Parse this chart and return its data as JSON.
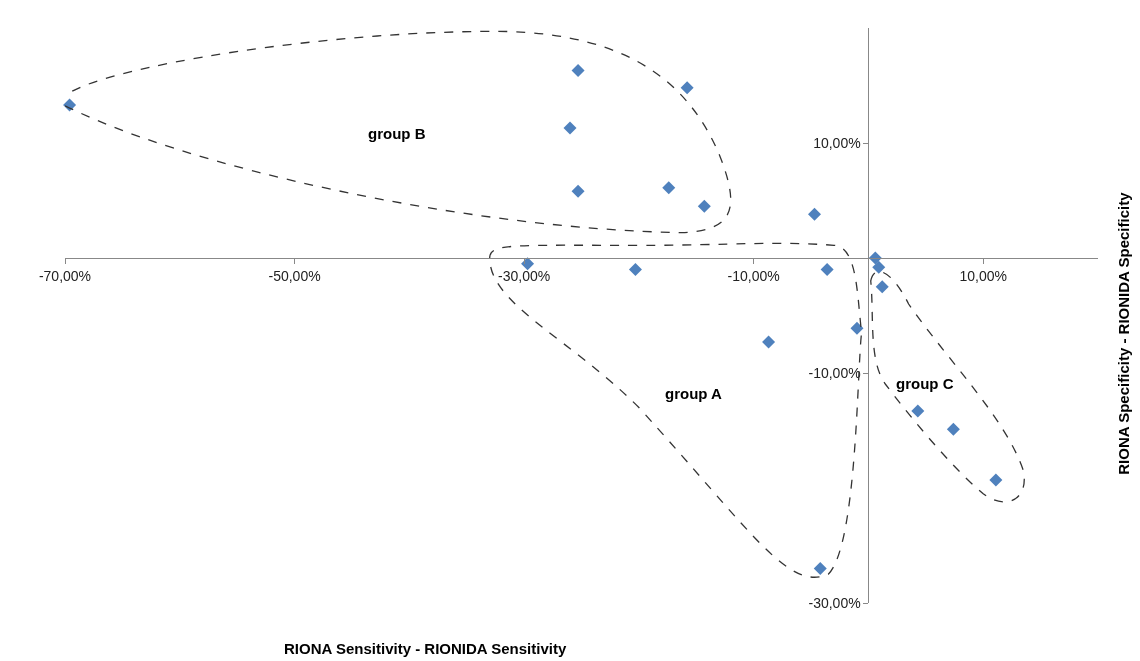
{
  "chart_data": {
    "type": "scatter",
    "xlabel": "RIONA Sensitivity - RIONIDA Sensitivity",
    "ylabel": "RIONA Specificity - RIONIDA Specificity",
    "x": [
      -69.6,
      -25.3,
      -15.8,
      -26.0,
      -25.3,
      -17.4,
      -14.3,
      -4.7,
      -29.7,
      -20.3,
      -3.6,
      0.6,
      0.9,
      1.2,
      -1.0,
      -8.7,
      -4.2,
      4.3,
      7.4,
      11.1
    ],
    "values": [
      13.3,
      16.3,
      14.8,
      11.3,
      5.8,
      6.1,
      4.5,
      3.8,
      -0.5,
      -1.0,
      -1.0,
      0.0,
      -0.8,
      -2.5,
      -6.1,
      -7.3,
      -27.0,
      -13.3,
      -14.9,
      -19.3
    ],
    "color": "#4f81bd",
    "marker": "diamond",
    "grid": false,
    "xlim": [
      -70,
      20
    ],
    "ylim": [
      -30,
      20
    ],
    "xticks": [
      {
        "value": -70,
        "label": "-70,00%"
      },
      {
        "value": -50,
        "label": "-50,00%"
      },
      {
        "value": -30,
        "label": "-30,00%"
      },
      {
        "value": -10,
        "label": "-10,00%"
      },
      {
        "value": 10,
        "label": "10,00%"
      }
    ],
    "yticks": [
      {
        "value": 10,
        "label": "10,00%"
      },
      {
        "value": -10,
        "label": "-10,00%"
      },
      {
        "value": -30,
        "label": "-30,00%"
      }
    ],
    "annotations": [
      "group B",
      "group A",
      "group C"
    ]
  }
}
